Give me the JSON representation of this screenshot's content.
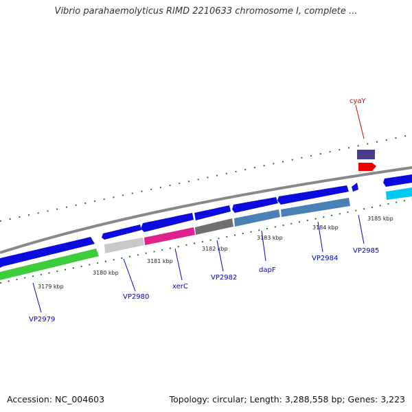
{
  "title": "Vibrio parahaemolyticus RIMD 2210633 chromosome I, complete ...",
  "footer": {
    "accession": "Accession: NC_004603",
    "summary": "Topology: circular; Length: 3,288,558 bp; Genes: 3,223"
  },
  "kbp_labels": [
    "3179 kbp",
    "3180 kbp",
    "3181 kbp",
    "3182 kbp",
    "3183 kbp",
    "3184 kbp",
    "3185 kbp"
  ],
  "genes": [
    {
      "id": "vp2979",
      "label": "VP2979",
      "color": "#0000cc"
    },
    {
      "id": "vp2980",
      "label": "VP2980",
      "color": "#0000cc"
    },
    {
      "id": "xerc",
      "label": "xerC",
      "color": "#0000cc"
    },
    {
      "id": "vp2982",
      "label": "VP2982",
      "color": "#0000cc"
    },
    {
      "id": "dapf",
      "label": "dapF",
      "color": "#0000cc"
    },
    {
      "id": "vp2984",
      "label": "VP2984",
      "color": "#0000cc"
    },
    {
      "id": "vp2985",
      "label": "VP2985",
      "color": "#0000cc"
    },
    {
      "id": "cyay",
      "label": "cyaY",
      "color": "#dd0000"
    }
  ],
  "colors": {
    "gene_blue": "#0b0bdd",
    "cds_green": "#3ccc3c",
    "cds_gray": "#c8c8c8",
    "cds_magenta": "#e0208c",
    "cds_darkgray": "#707070",
    "cds_steel": "#4a80b4",
    "cds_cyan": "#00c8f0",
    "rna_red": "#ee0000",
    "rna_purple": "#4a3c8c",
    "tick_green": "#1a7a1a",
    "backbone": "#888888"
  }
}
